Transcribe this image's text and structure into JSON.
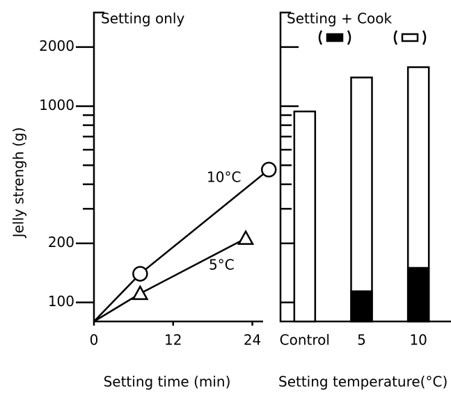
{
  "chart_data": [
    {
      "type": "line",
      "title": "Setting only",
      "xlabel": "Setting time (min)",
      "ylabel": "Jelly strengh (g)",
      "xlim": [
        0,
        27
      ],
      "xticks": [
        0,
        12,
        24
      ],
      "ylim": [
        80,
        3000
      ],
      "yscale": "log",
      "yticks": [
        100,
        200,
        1000,
        2000
      ],
      "yminor": [
        300,
        400,
        500,
        600,
        700,
        800,
        900
      ],
      "color": "#000000",
      "series": [
        {
          "name": "10°C",
          "marker": "circle",
          "x": [
            0,
            7,
            26.5
          ],
          "values": [
            80,
            140,
            475
          ]
        },
        {
          "name": "5°C",
          "marker": "triangle",
          "x": [
            0,
            7,
            23
          ],
          "values": [
            80,
            111,
            212
          ]
        }
      ]
    },
    {
      "type": "bar",
      "title": "Setting + Cook",
      "xlabel": "Setting temperature(°C)",
      "categories": [
        "Control",
        "5",
        "10"
      ],
      "ylim": [
        80,
        3000
      ],
      "yscale": "log",
      "yticks": [
        100,
        200,
        1000,
        2000
      ],
      "yminor": [
        300,
        400,
        500,
        600,
        700,
        800,
        900
      ],
      "ytick_labels": false,
      "barmode": "overlay",
      "series": [
        {
          "color": "#ffffff",
          "values": [
            940,
            1400,
            1580
          ]
        },
        {
          "color": "#000000",
          "values": [
            null,
            114,
            150
          ]
        }
      ]
    }
  ]
}
